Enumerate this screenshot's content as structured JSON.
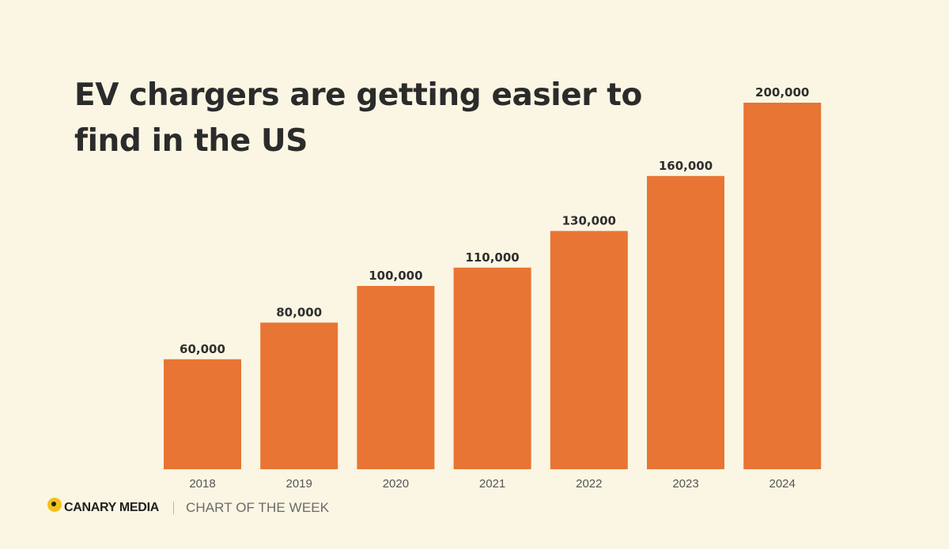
{
  "colors": {
    "background": "#faf6e3",
    "bar": "#e87533",
    "logo_accent": "#f2c31b"
  },
  "footer": {
    "brand": "CANARY MEDIA",
    "tagline": "CHART OF THE WEEK",
    "logo_icon": "canary-dot-icon"
  },
  "chart_data": {
    "type": "bar",
    "title": "EV chargers are getting easier to find in the US",
    "categories": [
      "2018",
      "2019",
      "2020",
      "2021",
      "2022",
      "2023",
      "2024"
    ],
    "values": [
      60000,
      80000,
      100000,
      110000,
      130000,
      160000,
      200000
    ],
    "value_labels": [
      "60,000",
      "80,000",
      "100,000",
      "110,000",
      "130,000",
      "160,000",
      "200,000"
    ],
    "xlabel": "",
    "ylabel": "",
    "ylim": [
      0,
      200000
    ],
    "grid": false,
    "legend": "none"
  }
}
